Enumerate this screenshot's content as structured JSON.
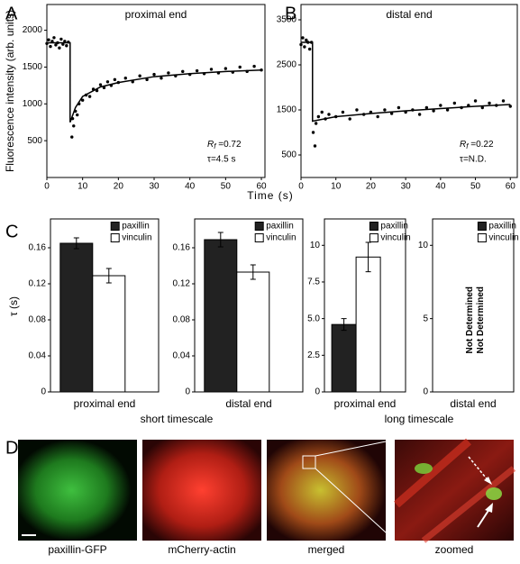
{
  "panel_labels": [
    "A",
    "B",
    "C",
    "D"
  ],
  "shared": {
    "time_label": "Time (s)",
    "tau_label": "τ (s)",
    "group_labels": [
      "short timescale",
      "long timescale"
    ]
  },
  "chart_data": [
    {
      "type": "scatter",
      "title": "proximal end",
      "ylabel": "Fluorescence intensity (arb. units)",
      "xlim": [
        0,
        61
      ],
      "xticks": [
        0,
        10,
        20,
        30,
        40,
        50,
        60
      ],
      "ylim": [
        0,
        2350
      ],
      "yticks": [
        500,
        1000,
        1500,
        2000
      ],
      "series": [
        {
          "type": "scatter",
          "color": "#000000",
          "x": [
            0,
            0.5,
            1,
            1.5,
            2,
            2.5,
            3,
            3.5,
            4,
            4.5,
            5,
            5.5,
            6,
            7,
            7.2,
            7.5,
            8,
            8.5,
            9,
            10,
            11,
            12,
            13,
            14,
            15,
            16,
            17,
            18,
            19,
            20,
            22,
            24,
            26,
            28,
            30,
            32,
            34,
            36,
            38,
            40,
            42,
            44,
            46,
            48,
            50,
            52,
            54,
            56,
            58,
            60
          ],
          "values": [
            1820,
            1870,
            1780,
            1850,
            1900,
            1800,
            1830,
            1760,
            1880,
            1810,
            1850,
            1790,
            1840,
            550,
            800,
            700,
            900,
            850,
            1000,
            1050,
            1120,
            1100,
            1200,
            1180,
            1260,
            1220,
            1300,
            1250,
            1330,
            1290,
            1350,
            1300,
            1380,
            1330,
            1400,
            1350,
            1420,
            1380,
            1440,
            1400,
            1450,
            1410,
            1470,
            1420,
            1480,
            1430,
            1500,
            1440,
            1510,
            1460
          ]
        },
        {
          "type": "line",
          "color": "#000000",
          "x": [
            0,
            6.5,
            6.5,
            8,
            10,
            15,
            20,
            30,
            40,
            50,
            60
          ],
          "values": [
            1830,
            1830,
            750,
            950,
            1100,
            1230,
            1290,
            1370,
            1410,
            1440,
            1460
          ]
        }
      ],
      "rf": {
        "symbol": "R",
        "sub": "f",
        "value": " =0.72"
      },
      "tau_note": "τ=4.5 s"
    },
    {
      "type": "scatter",
      "title": "distal end",
      "xlim": [
        0,
        62
      ],
      "xticks": [
        0,
        10,
        20,
        30,
        40,
        50,
        60
      ],
      "ylim": [
        0,
        3840
      ],
      "yticks": [
        500,
        1500,
        2500,
        3500
      ],
      "series": [
        {
          "type": "scatter",
          "color": "#000000",
          "x": [
            0,
            0.5,
            1,
            1.5,
            2,
            2.5,
            3,
            3.5,
            4,
            4.3,
            5,
            6,
            7,
            8,
            10,
            12,
            14,
            16,
            18,
            20,
            22,
            24,
            26,
            28,
            30,
            32,
            34,
            36,
            38,
            40,
            42,
            44,
            46,
            48,
            50,
            52,
            54,
            56,
            58,
            60
          ],
          "values": [
            2950,
            3100,
            2900,
            3050,
            3000,
            2850,
            3000,
            1000,
            700,
            1200,
            1350,
            1450,
            1300,
            1400,
            1350,
            1450,
            1300,
            1500,
            1400,
            1450,
            1350,
            1500,
            1420,
            1550,
            1450,
            1500,
            1400,
            1550,
            1480,
            1600,
            1500,
            1650,
            1550,
            1600,
            1700,
            1550,
            1650,
            1600,
            1700,
            1580
          ]
        },
        {
          "type": "line",
          "color": "#000000",
          "x": [
            0,
            3.3,
            3.3,
            10,
            20,
            30,
            40,
            50,
            60
          ],
          "values": [
            3000,
            3000,
            1250,
            1350,
            1420,
            1480,
            1530,
            1580,
            1620
          ]
        }
      ],
      "rf": {
        "symbol": "R",
        "sub": "f",
        "value": " =0.22"
      },
      "tau_note": "τ=N.D."
    },
    {
      "type": "bar",
      "categories": [
        "proximal end"
      ],
      "ylim": [
        0,
        0.192
      ],
      "yticks": [
        0,
        0.04,
        0.08,
        0.12,
        0.16
      ],
      "legend": "top-right",
      "series": [
        {
          "name": "paxillin",
          "color": "#222222",
          "values": [
            0.165
          ],
          "errors": [
            0.006
          ]
        },
        {
          "name": "vinculin",
          "color": "#ffffff",
          "values": [
            0.129
          ],
          "errors": [
            0.008
          ]
        }
      ]
    },
    {
      "type": "bar",
      "categories": [
        "distal end"
      ],
      "ylim": [
        0,
        0.192
      ],
      "yticks": [
        0,
        0.04,
        0.08,
        0.12,
        0.16
      ],
      "legend": "top-right",
      "series": [
        {
          "name": "paxillin",
          "color": "#222222",
          "values": [
            0.169
          ],
          "errors": [
            0.008
          ]
        },
        {
          "name": "vinculin",
          "color": "#ffffff",
          "values": [
            0.133
          ],
          "errors": [
            0.008
          ]
        }
      ]
    },
    {
      "type": "bar",
      "categories": [
        "proximal end"
      ],
      "ylim": [
        0,
        11.8
      ],
      "yticks": [
        0,
        2.5,
        {
          "value": 5,
          "label": "5.0"
        },
        7.5,
        10
      ],
      "legend": "top-right",
      "series": [
        {
          "name": "paxillin",
          "color": "#222222",
          "values": [
            4.6
          ],
          "errors": [
            0.4
          ]
        },
        {
          "name": "vinculin",
          "color": "#ffffff",
          "values": [
            9.2
          ],
          "errors": [
            1.0
          ]
        }
      ]
    },
    {
      "type": "bar",
      "categories": [
        "distal end"
      ],
      "ylim": [
        0,
        11.8
      ],
      "yticks": [
        0,
        5,
        10
      ],
      "legend": "top-right",
      "series": [
        {
          "name": "paxillin",
          "color": "#222222",
          "values": [
            null
          ],
          "value_labels": [
            "Not Determined"
          ]
        },
        {
          "name": "vinculin",
          "color": "#ffffff",
          "values": [
            null
          ],
          "value_labels": [
            "Not Determined"
          ]
        }
      ]
    }
  ],
  "images": [
    {
      "caption": "paxillin-GFP"
    },
    {
      "caption": "mCherry-actin"
    },
    {
      "caption": "merged"
    },
    {
      "caption": "zoomed"
    }
  ]
}
